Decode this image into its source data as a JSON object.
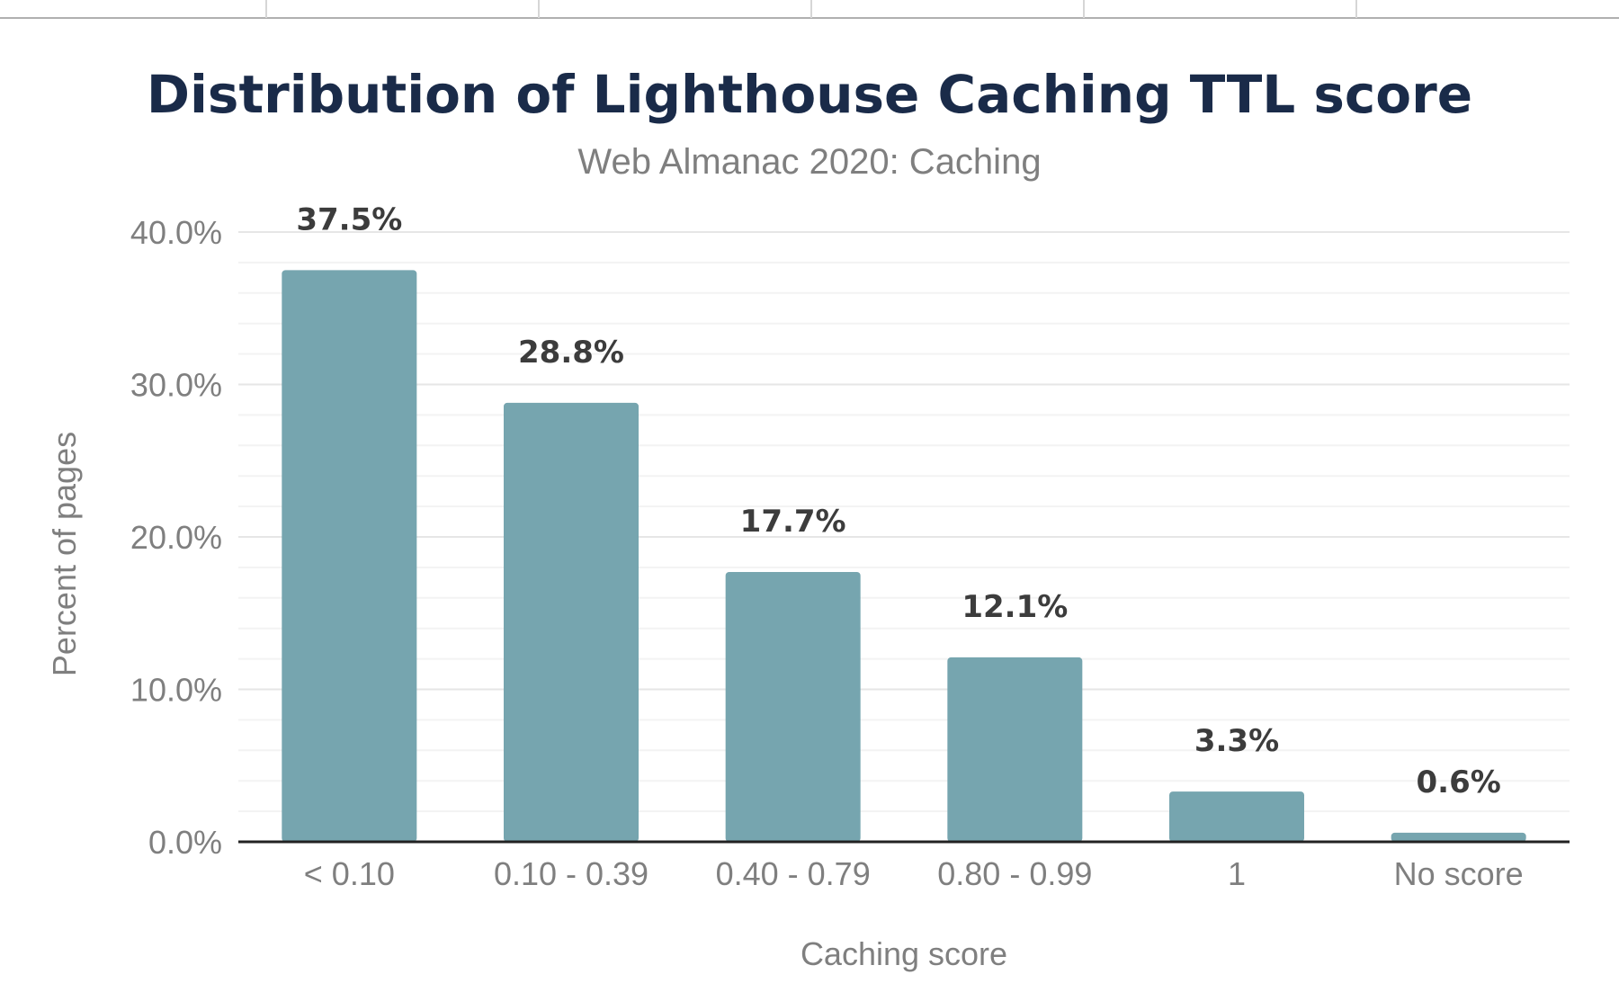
{
  "chart_data": {
    "type": "bar",
    "title": "Distribution of Lighthouse Caching TTL score",
    "subtitle": "Web Almanac 2020: Caching",
    "xlabel": "Caching score",
    "ylabel": "Percent of pages",
    "categories": [
      "< 0.10",
      "0.10 - 0.39",
      "0.40 - 0.79",
      "0.80 - 0.99",
      "1",
      "No score"
    ],
    "values": [
      37.5,
      28.8,
      17.7,
      12.1,
      3.3,
      0.6
    ],
    "value_labels": [
      "37.5%",
      "28.8%",
      "17.7%",
      "12.1%",
      "3.3%",
      "0.6%"
    ],
    "ylim": [
      0,
      40
    ],
    "yticks": [
      0,
      10,
      20,
      30,
      40
    ],
    "ytick_labels": [
      "0.0%",
      "10.0%",
      "20.0%",
      "30.0%",
      "40.0%"
    ],
    "grid": true,
    "bar_color": "#76a5af",
    "title_color": "#1a2b49"
  }
}
